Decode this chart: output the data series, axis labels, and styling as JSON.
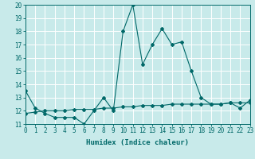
{
  "title": "",
  "xlabel": "Humidex (Indice chaleur)",
  "ylabel": "",
  "bg_color": "#c8eaea",
  "grid_color": "#ffffff",
  "line_color": "#006868",
  "ylim": [
    11,
    20
  ],
  "xlim": [
    0,
    23
  ],
  "yticks": [
    11,
    12,
    13,
    14,
    15,
    16,
    17,
    18,
    19,
    20
  ],
  "xticks": [
    0,
    1,
    2,
    3,
    4,
    5,
    6,
    7,
    8,
    9,
    10,
    11,
    12,
    13,
    14,
    15,
    16,
    17,
    18,
    19,
    20,
    21,
    22,
    23
  ],
  "curve1_x": [
    0,
    1,
    2,
    3,
    4,
    5,
    6,
    7,
    8,
    9,
    10,
    11,
    12,
    13,
    14,
    15,
    16,
    17,
    18,
    19,
    20,
    21,
    22,
    23
  ],
  "curve1_y": [
    13.5,
    12.2,
    11.8,
    11.5,
    11.5,
    11.5,
    11.0,
    12.0,
    13.0,
    12.0,
    18.0,
    20.0,
    15.5,
    17.0,
    18.2,
    17.0,
    17.2,
    15.0,
    13.0,
    12.5,
    12.5,
    12.6,
    12.2,
    12.8
  ],
  "curve2_x": [
    0,
    1,
    2,
    3,
    4,
    5,
    6,
    7,
    8,
    9,
    10,
    11,
    12,
    13,
    14,
    15,
    16,
    17,
    18,
    19,
    20,
    21,
    22,
    23
  ],
  "curve2_y": [
    11.8,
    11.9,
    12.0,
    12.0,
    12.0,
    12.1,
    12.1,
    12.1,
    12.2,
    12.2,
    12.3,
    12.3,
    12.4,
    12.4,
    12.4,
    12.5,
    12.5,
    12.5,
    12.5,
    12.5,
    12.5,
    12.6,
    12.6,
    12.6
  ],
  "marker": "D",
  "markersize": 2.0,
  "linewidth": 0.8,
  "tick_fontsize": 5.5,
  "label_fontsize": 6.5,
  "font_family": "monospace"
}
